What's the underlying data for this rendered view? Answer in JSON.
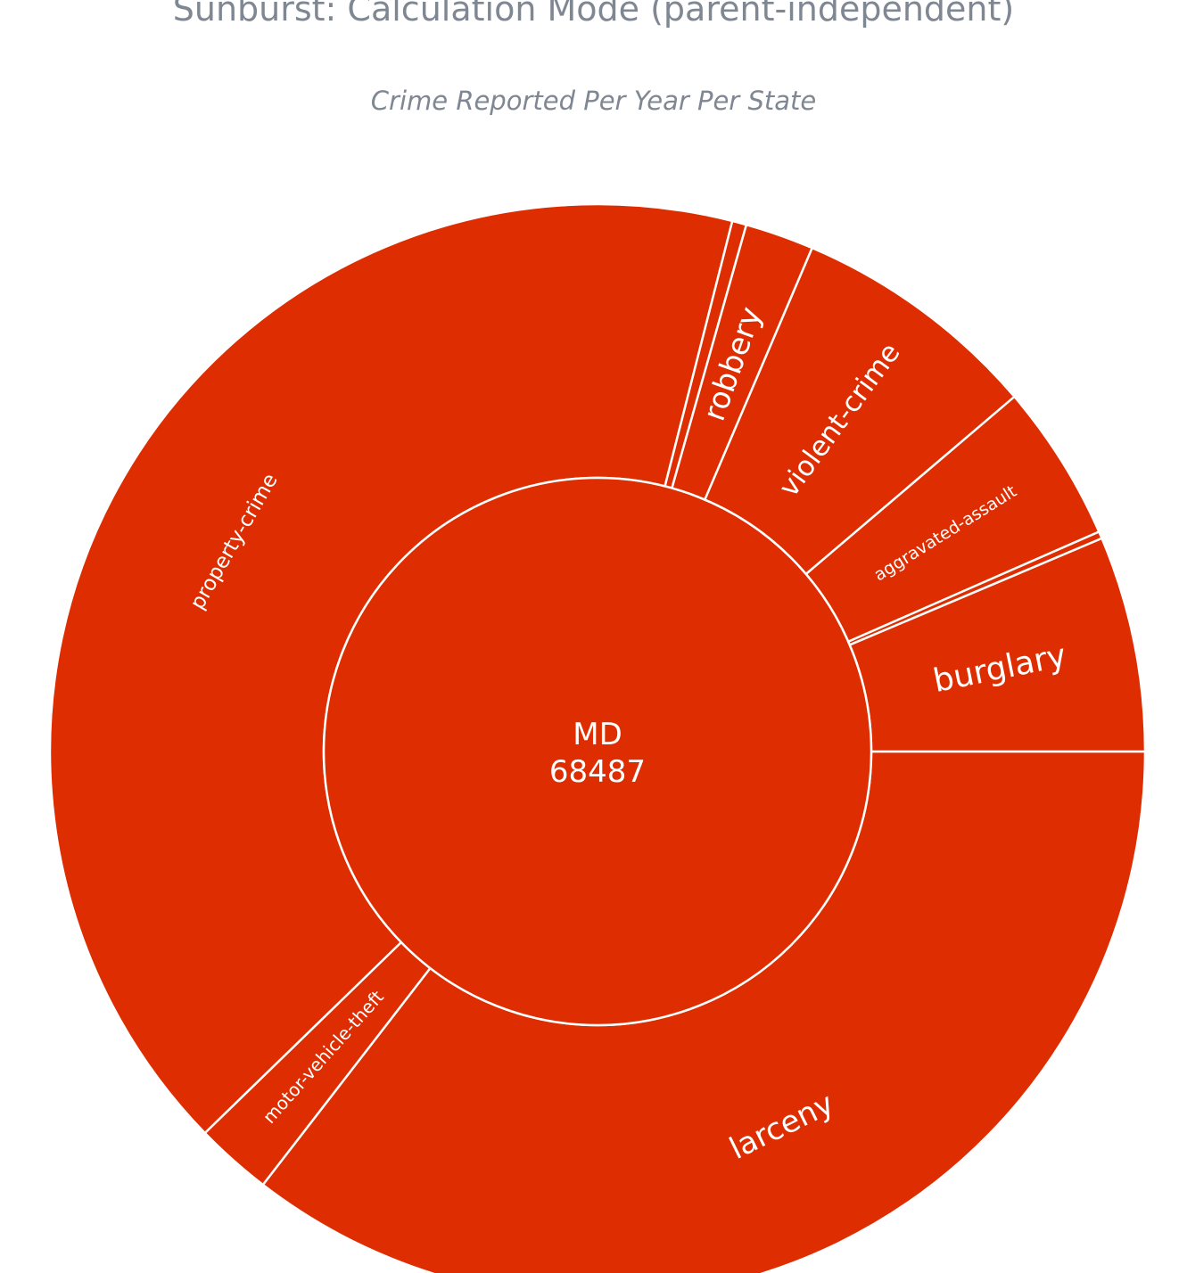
{
  "chart_data": {
    "type": "sunburst",
    "title": "Sunburst: Calculation Mode (parent-independent)",
    "subtitle": "Crime Reported Per Year Per State",
    "color": "#de2d00",
    "border_color": "#ffffff",
    "text_color": "#ffffff",
    "root": {
      "label": "MD",
      "value": 68487
    },
    "nodes": [
      {
        "label": "larceny",
        "value": 24829
      },
      {
        "label": "motor-vehicle-theft",
        "value": 1584
      },
      {
        "label": "property-crime",
        "value": 28870
      },
      {
        "label": "",
        "value": 295
      },
      {
        "label": "robbery",
        "value": 1421
      },
      {
        "label": "violent-crime",
        "value": 5156
      },
      {
        "label": "aggravated-assault",
        "value": 3255
      },
      {
        "label": "",
        "value": 147
      },
      {
        "label": "burglary",
        "value": 4457
      }
    ]
  }
}
